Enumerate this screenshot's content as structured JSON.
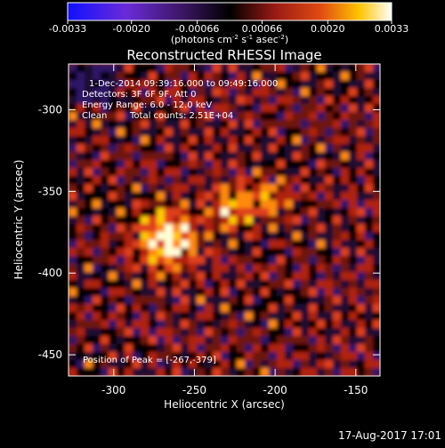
{
  "chart_data": {
    "type": "heatmap",
    "title": "Reconstructed RHESSI Image",
    "xlabel": "Heliocentric X (arcsec)",
    "ylabel": "Heliocentric Y (arcsec)",
    "xlim": [
      -328,
      -135
    ],
    "ylim": [
      -463,
      -272
    ],
    "xticks": [
      -300,
      -250,
      -200,
      -150
    ],
    "yticks": [
      -300,
      -350,
      -400,
      -450
    ],
    "colorbar": {
      "range": [
        -0.0033,
        0.0033
      ],
      "ticks": [
        "-0.0033",
        "-0.0020",
        "-0.00066",
        "0.00066",
        "0.0020",
        "0.0033"
      ],
      "tick_values": [
        -0.0033,
        -0.002,
        -0.00066,
        0.00066,
        0.002,
        0.0033
      ],
      "unit_label": "(photons cm",
      "unit_exp1": "-2",
      "unit_mid": " s",
      "unit_exp2": "-1",
      "unit_mid2": " asec",
      "unit_exp3": "-2",
      "unit_end": ")",
      "colormap": "RHESSI diverging: blue-purple-black (negative) to red-yellow-white (positive)"
    },
    "annotations": [
      "1-Dec-2014 09:39:16.000 to 09:49:16.000",
      "Detectors: 3F 6F 9F, Att 0",
      "Energy Range: 6.0 - 12.0 keV",
      "Clean",
      "Total counts: 2.51E+04"
    ],
    "peak_label": "Position of Peak = [-267,-379]",
    "peak_position": [
      -267,
      -379
    ],
    "grid": false
  },
  "footer": {
    "timestamp": "17-Aug-2017 17:01"
  },
  "colors": {
    "background": "#000000",
    "axes": "#ffffff",
    "peak": "#ffffe0",
    "hot": "#ffc800",
    "mid": "#d22a10",
    "negative": "#2a1150"
  }
}
